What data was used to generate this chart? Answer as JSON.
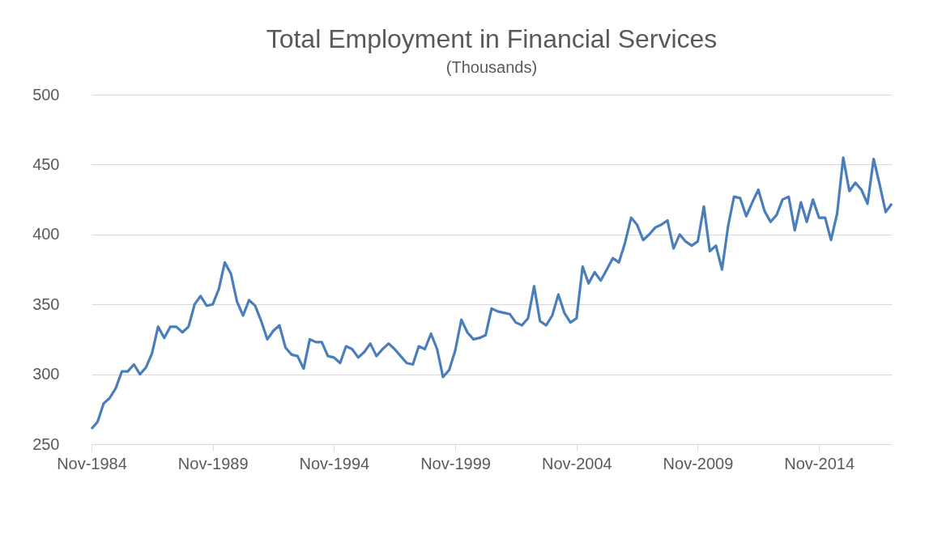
{
  "chart_data": {
    "type": "line",
    "title": "Total Employment in Financial Services",
    "subtitle": "(Thousands)",
    "x": [
      "1984-11",
      "1985-02",
      "1985-05",
      "1985-08",
      "1985-11",
      "1986-02",
      "1986-05",
      "1986-08",
      "1986-11",
      "1987-02",
      "1987-05",
      "1987-08",
      "1987-11",
      "1988-02",
      "1988-05",
      "1988-08",
      "1988-11",
      "1989-02",
      "1989-05",
      "1989-08",
      "1989-11",
      "1990-02",
      "1990-05",
      "1990-08",
      "1990-11",
      "1991-02",
      "1991-05",
      "1991-08",
      "1991-11",
      "1992-02",
      "1992-05",
      "1992-08",
      "1992-11",
      "1993-02",
      "1993-05",
      "1993-08",
      "1993-11",
      "1994-02",
      "1994-05",
      "1994-08",
      "1994-11",
      "1995-02",
      "1995-05",
      "1995-08",
      "1995-11",
      "1996-02",
      "1996-05",
      "1996-08",
      "1996-11",
      "1997-02",
      "1997-05",
      "1997-08",
      "1997-11",
      "1998-02",
      "1998-05",
      "1998-08",
      "1998-11",
      "1999-02",
      "1999-05",
      "1999-08",
      "1999-11",
      "2000-02",
      "2000-05",
      "2000-08",
      "2000-11",
      "2001-02",
      "2001-05",
      "2001-08",
      "2001-11",
      "2002-02",
      "2002-05",
      "2002-08",
      "2002-11",
      "2003-02",
      "2003-05",
      "2003-08",
      "2003-11",
      "2004-02",
      "2004-05",
      "2004-08",
      "2004-11",
      "2005-02",
      "2005-05",
      "2005-08",
      "2005-11",
      "2006-02",
      "2006-05",
      "2006-08",
      "2006-11",
      "2007-02",
      "2007-05",
      "2007-08",
      "2007-11",
      "2008-02",
      "2008-05",
      "2008-08",
      "2008-11",
      "2009-02",
      "2009-05",
      "2009-08",
      "2009-11",
      "2010-02",
      "2010-05",
      "2010-08",
      "2010-11",
      "2011-02",
      "2011-05",
      "2011-08",
      "2011-11",
      "2012-02",
      "2012-05",
      "2012-08",
      "2012-11",
      "2013-02",
      "2013-05",
      "2013-08",
      "2013-11",
      "2014-02",
      "2014-05",
      "2014-08",
      "2014-11",
      "2015-02",
      "2015-05",
      "2015-08",
      "2015-11",
      "2016-02",
      "2016-05",
      "2016-08",
      "2016-11",
      "2017-02",
      "2017-05",
      "2017-08",
      "2017-11"
    ],
    "series": [
      {
        "color": "#4a7ebb",
        "values": [
          261,
          266,
          279,
          283,
          290,
          302,
          302,
          307,
          300,
          305,
          315,
          334,
          326,
          334,
          334,
          330,
          334,
          350,
          356,
          349,
          350,
          361,
          380,
          372,
          352,
          342,
          353,
          349,
          338,
          325,
          331,
          335,
          319,
          314,
          313,
          304,
          325,
          323,
          323,
          313,
          312,
          308,
          320,
          318,
          312,
          316,
          322,
          313,
          318,
          322,
          318,
          313,
          308,
          307,
          320,
          318,
          329,
          318,
          298,
          303,
          317,
          339,
          330,
          325,
          326,
          328,
          347,
          345,
          344,
          343,
          337,
          335,
          340,
          363,
          338,
          335,
          342,
          357,
          344,
          337,
          340,
          377,
          365,
          373,
          367,
          375,
          383,
          380,
          394,
          412,
          407,
          396,
          400,
          405,
          407,
          410,
          390,
          400,
          395,
          392,
          395,
          420,
          388,
          392,
          375,
          406,
          427,
          426,
          413,
          423,
          432,
          417,
          409,
          414,
          425,
          427,
          403,
          423,
          409,
          425,
          412,
          412,
          396,
          415,
          455,
          431,
          437,
          432,
          422,
          454,
          436,
          416,
          422
        ]
      }
    ],
    "xlim": [
      "1984-11",
      "2017-11"
    ],
    "xticks": [
      {
        "value": "1984-11",
        "label": "Nov-1984"
      },
      {
        "value": "1989-11",
        "label": "Nov-1989"
      },
      {
        "value": "1994-11",
        "label": "Nov-1994"
      },
      {
        "value": "1999-11",
        "label": "Nov-1999"
      },
      {
        "value": "2004-11",
        "label": "Nov-2004"
      },
      {
        "value": "2009-11",
        "label": "Nov-2009"
      },
      {
        "value": "2014-11",
        "label": "Nov-2014"
      }
    ],
    "ylim": [
      250,
      500
    ],
    "yticks": [
      250,
      300,
      350,
      400,
      450,
      500
    ],
    "grid": "y",
    "legend": false,
    "marker": "none",
    "line_style": "solid"
  }
}
